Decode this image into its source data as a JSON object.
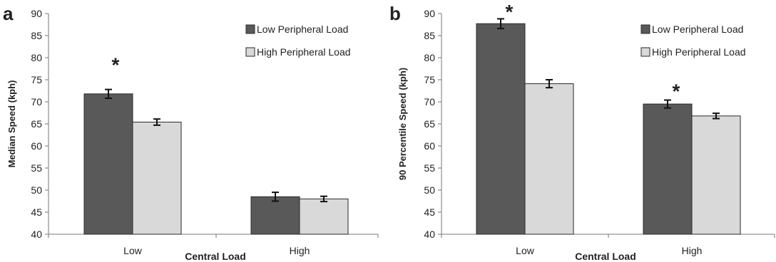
{
  "chart_data": [
    {
      "panel_label": "a",
      "type": "bar",
      "categories": [
        "Low",
        "High"
      ],
      "xlabel": "Central Load",
      "ylabel": "Median Speed (kph)",
      "ylim": [
        40,
        90
      ],
      "yticks": [
        40,
        45,
        50,
        55,
        60,
        65,
        70,
        75,
        80,
        85,
        90
      ],
      "legend_position": "top-right",
      "series": [
        {
          "name": "Low Peripheral Load",
          "color": "#595959",
          "values": [
            71.8,
            48.5
          ],
          "errors": [
            1.0,
            1.0
          ]
        },
        {
          "name": "High Peripheral Load",
          "color": "#d9d9d9",
          "values": [
            65.4,
            48.0
          ],
          "errors": [
            0.7,
            0.6
          ]
        }
      ],
      "annotations": [
        {
          "text": "*",
          "category": "Low",
          "y": 78.5
        }
      ]
    },
    {
      "panel_label": "b",
      "type": "bar",
      "categories": [
        "Low",
        "High"
      ],
      "xlabel": "Central Load",
      "ylabel": "90 Percentile Speed (kph)",
      "ylim": [
        40,
        90
      ],
      "yticks": [
        40,
        45,
        50,
        55,
        60,
        65,
        70,
        75,
        80,
        85,
        90
      ],
      "legend_position": "top-right",
      "series": [
        {
          "name": "Low Peripheral Load",
          "color": "#595959",
          "values": [
            87.7,
            69.5
          ],
          "errors": [
            1.1,
            0.9
          ]
        },
        {
          "name": "High Peripheral Load",
          "color": "#d9d9d9",
          "values": [
            74.1,
            66.8
          ],
          "errors": [
            0.9,
            0.6
          ]
        }
      ],
      "annotations": [
        {
          "text": "*",
          "category": "Low",
          "y": 90.5
        },
        {
          "text": "*",
          "category": "High",
          "y": 72.5
        }
      ]
    }
  ]
}
